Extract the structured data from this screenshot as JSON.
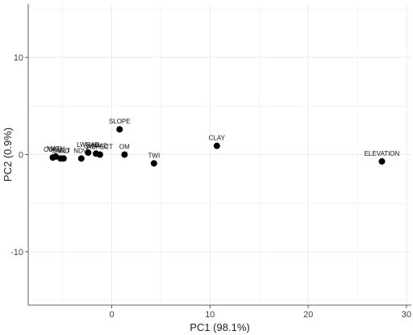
{
  "chart_data": {
    "type": "scatter",
    "title": "",
    "xlabel": "PC1 (98.1%)",
    "ylabel": "PC2 (0.9%)",
    "xlim": [
      -8.5,
      30.5
    ],
    "ylim": [
      -15.5,
      15.5
    ],
    "x_ticks": [
      0,
      10,
      20,
      30
    ],
    "y_ticks": [
      -10,
      0,
      10
    ],
    "grid": true,
    "background": "#ffffff",
    "grid_color": "#ebebeb",
    "point_color": "#000000",
    "points": [
      {
        "label": "SLOPE",
        "x": 0.8,
        "y": 2.6
      },
      {
        "label": "CLAY",
        "x": 10.7,
        "y": 0.9
      },
      {
        "label": "ELEVATION",
        "x": 27.5,
        "y": -0.7
      },
      {
        "label": "TWI",
        "x": 4.3,
        "y": -0.9
      },
      {
        "label": "OM",
        "x": 1.3,
        "y": 0.0
      },
      {
        "label": "CURV",
        "x": -6.0,
        "y": -0.3
      },
      {
        "label": "MATH",
        "x": -5.7,
        "y": -0.2
      },
      {
        "label": "SAND",
        "x": -5.2,
        "y": -0.4
      },
      {
        "label": "SILT",
        "x": -4.9,
        "y": -0.4
      },
      {
        "label": "NDVI",
        "x": -3.1,
        "y": -0.4
      },
      {
        "label": "LWRAD",
        "x": -2.4,
        "y": 0.2
      },
      {
        "label": "SWRAD",
        "x": -1.6,
        "y": 0.1
      },
      {
        "label": "ASPECT",
        "x": -1.2,
        "y": 0.0
      }
    ]
  }
}
